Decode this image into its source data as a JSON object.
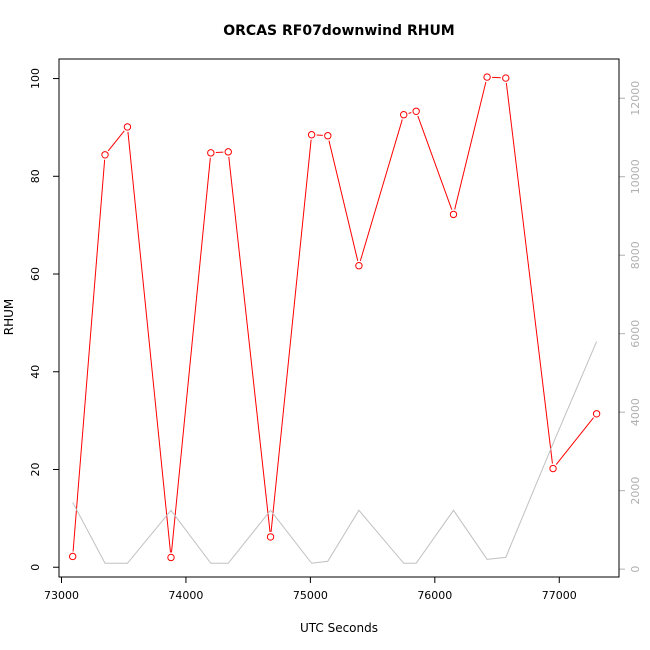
{
  "chart_data": {
    "type": "line",
    "title": "ORCAS RF07downwind RHUM",
    "xlabel": "UTC Seconds",
    "ylabel": "RHUM",
    "xlim": [
      72980,
      77480
    ],
    "ylim": [
      -2,
      104
    ],
    "ylim_right": [
      -200,
      13000
    ],
    "x_ticks": [
      73000,
      74000,
      75000,
      76000,
      77000
    ],
    "y_ticks": [
      0,
      20,
      40,
      60,
      80,
      100
    ],
    "y_ticks_right": [
      0,
      2000,
      4000,
      6000,
      8000,
      10000,
      12000
    ],
    "series": [
      {
        "axis": "left",
        "color": "#ff0000",
        "style": "line+markers",
        "x": [
          73090,
          73350,
          73530,
          73880,
          74200,
          74340,
          74680,
          75010,
          75140,
          75390,
          75750,
          75850,
          76150,
          76420,
          76570,
          76950,
          77300
        ],
        "y": [
          2.2,
          84.4,
          90.1,
          2.0,
          84.8,
          85.0,
          6.2,
          88.5,
          88.3,
          61.7,
          92.6,
          93.3,
          72.2,
          100.3,
          100.1,
          20.2,
          31.4
        ]
      },
      {
        "axis": "right",
        "color": "#c0c0c0",
        "style": "line",
        "x": [
          73090,
          73350,
          73530,
          73880,
          74200,
          74340,
          74680,
          75010,
          75140,
          75390,
          75750,
          75850,
          76150,
          76420,
          76570,
          76950,
          77300
        ],
        "y": [
          1700,
          150,
          150,
          1500,
          150,
          150,
          1500,
          150,
          200,
          1500,
          150,
          150,
          1500,
          250,
          300,
          3200,
          5800
        ]
      }
    ]
  }
}
